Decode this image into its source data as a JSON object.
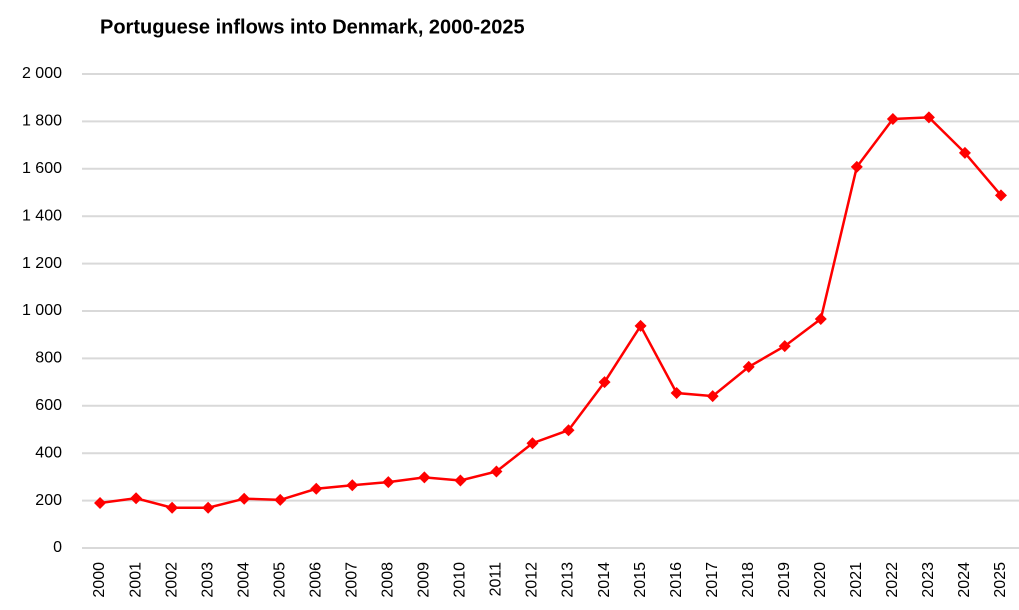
{
  "chart_data": {
    "type": "line",
    "title": "Portuguese inflows into Denmark, 2000-2025",
    "categories": [
      "2000",
      "2001",
      "2002",
      "2003",
      "2004",
      "2005",
      "2006",
      "2007",
      "2008",
      "2009",
      "2010",
      "2011",
      "2012",
      "2013",
      "2014",
      "2015",
      "2016",
      "2017",
      "2018",
      "2019",
      "2020",
      "2021",
      "2022",
      "2023",
      "2024",
      "2025"
    ],
    "series": [
      {
        "name": "Portuguese inflows",
        "color": "#ff0000",
        "values": [
          190,
          210,
          170,
          170,
          208,
          203,
          250,
          265,
          278,
          298,
          285,
          323,
          442,
          497,
          700,
          937,
          654,
          641,
          764,
          852,
          966,
          1608,
          1810,
          1817,
          1667,
          1488
        ]
      }
    ],
    "ylim": [
      0,
      2000
    ],
    "yticks": [
      0,
      200,
      400,
      600,
      800,
      {
        "value": 1000,
        "label": "1 000"
      },
      {
        "value": 1200,
        "label": "1 200"
      },
      {
        "value": 1400,
        "label": "1 400"
      },
      {
        "value": 1600,
        "label": "1 600"
      },
      {
        "value": 1800,
        "label": "1 800"
      },
      {
        "value": 2000,
        "label": "2 000"
      }
    ],
    "grid": true,
    "legend": false
  }
}
